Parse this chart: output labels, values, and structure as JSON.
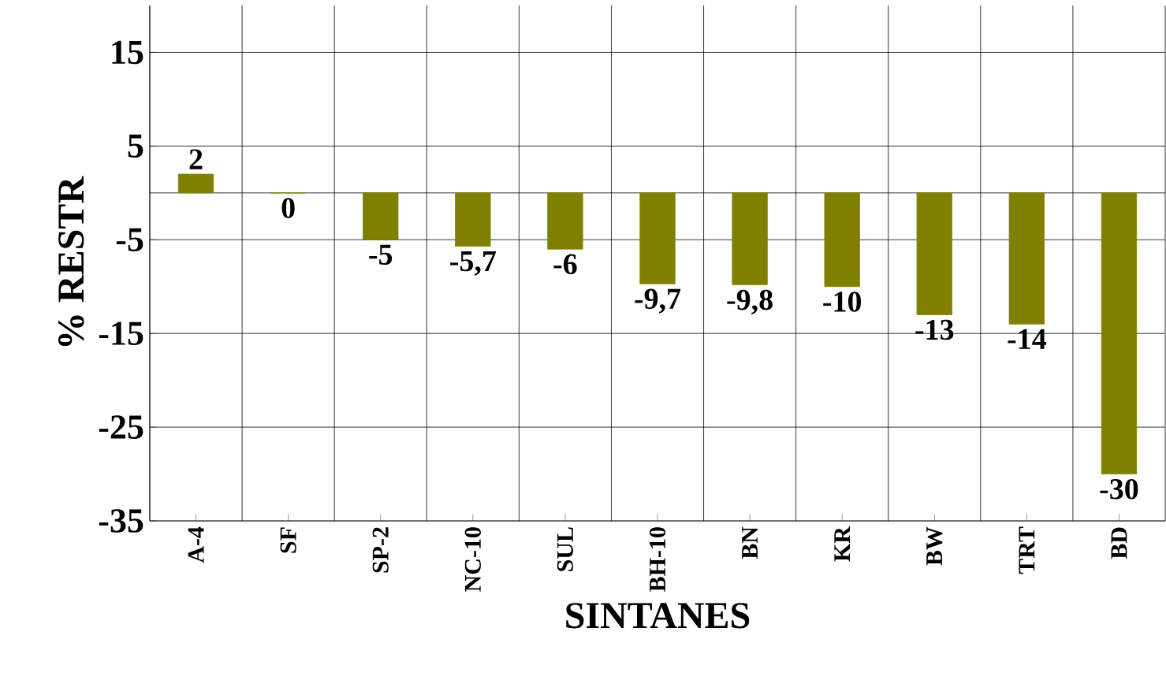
{
  "chart_data": {
    "type": "bar",
    "xlabel": "SINTANES",
    "ylabel": "%     RESTR",
    "categories": [
      "A-4",
      "SF",
      "SP-2",
      "NC-10",
      "SUL",
      "BH-10",
      "BN",
      "KR",
      "BW",
      "TRT",
      "BD"
    ],
    "values": [
      2,
      0,
      -5,
      -5.7,
      -6,
      -9.7,
      -9.8,
      -10,
      -13,
      -14,
      -30
    ],
    "value_labels": [
      "2",
      "0",
      "-5",
      "-5,7",
      "-6",
      "-9,7",
      "-9,8",
      "-10",
      "-13",
      "-14",
      "-30"
    ],
    "color": "#808000",
    "ylim": [
      -35,
      20
    ],
    "yticks": [
      -35,
      -25,
      -15,
      -5,
      5,
      15
    ],
    "grid": true
  }
}
